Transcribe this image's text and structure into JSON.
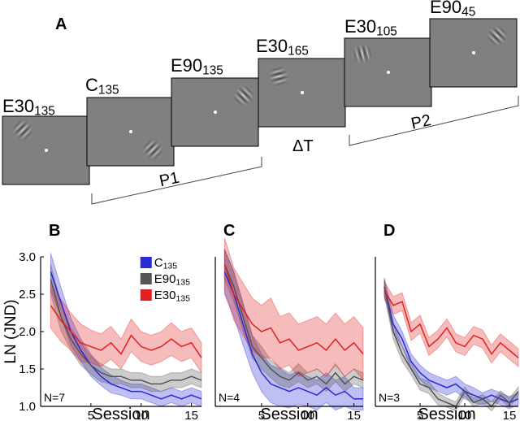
{
  "panel_a": {
    "label": "A",
    "frames": [
      {
        "name": "E30",
        "sub": "135"
      },
      {
        "name": "C",
        "sub": "135"
      },
      {
        "name": "E90",
        "sub": "135"
      },
      {
        "name": "E30",
        "sub": "165"
      },
      {
        "name": "E30",
        "sub": "105"
      },
      {
        "name": "E90",
        "sub": "45"
      }
    ],
    "p1": "P1",
    "delta": "ΔT",
    "p2": "P2"
  },
  "chart_data": [
    {
      "type": "line",
      "panel": "B",
      "ylabel": "LN (JND)",
      "xlabel": "Session",
      "n_label": "N=7",
      "legend": "upper right",
      "x": [
        1,
        2,
        3,
        4,
        5,
        6,
        7,
        8,
        9,
        10,
        11,
        12,
        13,
        14,
        15,
        16
      ],
      "xlim": [
        0,
        16
      ],
      "xticks": [
        5,
        10,
        15
      ],
      "ylim": [
        1,
        3
      ],
      "yticks": [
        {
          "value": 1,
          "label": "1.0"
        },
        {
          "value": 1.5,
          "label": "1.5"
        },
        {
          "value": 2,
          "label": "2.0"
        },
        {
          "value": 2.5,
          "label": "2.5"
        },
        {
          "value": 3,
          "label": "3.0"
        }
      ],
      "series": [
        {
          "name": "C",
          "sub": "135",
          "color": "#2a2ad6",
          "values": [
            2.8,
            2.4,
            2.0,
            1.75,
            1.55,
            1.4,
            1.3,
            1.25,
            1.2,
            1.2,
            1.15,
            1.1,
            1.15,
            1.1,
            1.15,
            1.1
          ],
          "errors": [
            0.25,
            0.2,
            0.18,
            0.15,
            0.15,
            0.12,
            0.12,
            0.1,
            0.1,
            0.1,
            0.1,
            0.1,
            0.1,
            0.1,
            0.1,
            0.1
          ]
        },
        {
          "name": "E90",
          "sub": "135",
          "color": "#555555",
          "values": [
            2.7,
            2.2,
            1.9,
            1.7,
            1.55,
            1.45,
            1.4,
            1.4,
            1.35,
            1.35,
            1.3,
            1.3,
            1.35,
            1.35,
            1.4,
            1.35
          ],
          "errors": [
            0.2,
            0.18,
            0.15,
            0.15,
            0.12,
            0.12,
            0.1,
            0.1,
            0.1,
            0.1,
            0.1,
            0.1,
            0.1,
            0.1,
            0.1,
            0.1
          ]
        },
        {
          "name": "E30",
          "sub": "135",
          "color": "#e02020",
          "values": [
            2.35,
            2.15,
            2.0,
            1.85,
            1.8,
            1.75,
            1.85,
            1.7,
            1.95,
            1.8,
            1.75,
            1.8,
            1.9,
            1.8,
            1.85,
            1.65
          ],
          "errors": [
            0.3,
            0.28,
            0.25,
            0.25,
            0.22,
            0.22,
            0.22,
            0.2,
            0.22,
            0.2,
            0.2,
            0.2,
            0.22,
            0.2,
            0.2,
            0.2
          ]
        }
      ]
    },
    {
      "type": "line",
      "panel": "C",
      "xlabel": "Session",
      "n_label": "N=4",
      "x": [
        1,
        2,
        3,
        4,
        5,
        6,
        7,
        8,
        9,
        10,
        11,
        12,
        13,
        14,
        15,
        16
      ],
      "xlim": [
        0,
        16
      ],
      "xticks": [
        5,
        10,
        15
      ],
      "ylim": [
        1,
        3
      ],
      "series": [
        {
          "color": "#2a2ad6",
          "values": [
            2.8,
            2.5,
            2.1,
            1.7,
            1.45,
            1.3,
            1.25,
            1.2,
            1.25,
            1.2,
            1.15,
            1.25,
            1.15,
            1.2,
            1.1,
            1.1
          ],
          "errors": [
            0.3,
            0.3,
            0.28,
            0.25,
            0.25,
            0.25,
            0.25,
            0.22,
            0.22,
            0.2,
            0.2,
            0.2,
            0.2,
            0.2,
            0.15,
            0.15
          ]
        },
        {
          "color": "#555555",
          "values": [
            2.9,
            2.6,
            2.2,
            1.8,
            1.65,
            1.5,
            1.4,
            1.35,
            1.45,
            1.35,
            1.4,
            1.3,
            1.45,
            1.3,
            1.4,
            1.35
          ],
          "errors": [
            0.2,
            0.2,
            0.18,
            0.15,
            0.15,
            0.12,
            0.12,
            0.1,
            0.12,
            0.1,
            0.1,
            0.1,
            0.12,
            0.1,
            0.1,
            0.1
          ]
        },
        {
          "color": "#e02020",
          "values": [
            2.9,
            2.5,
            2.3,
            2.1,
            2.0,
            2.05,
            1.85,
            1.9,
            1.75,
            1.8,
            1.85,
            1.75,
            1.9,
            1.75,
            1.85,
            1.7
          ],
          "errors": [
            0.35,
            0.35,
            0.35,
            0.35,
            0.35,
            0.4,
            0.35,
            0.35,
            0.35,
            0.35,
            0.35,
            0.35,
            0.35,
            0.35,
            0.35,
            0.35
          ]
        }
      ]
    },
    {
      "type": "line",
      "panel": "D",
      "xlabel": "Session",
      "n_label": "N=3",
      "x": [
        1,
        2,
        3,
        4,
        5,
        6,
        7,
        8,
        9,
        10,
        11,
        12,
        13,
        14,
        15,
        16
      ],
      "xlim": [
        0,
        16
      ],
      "xticks": [
        5,
        10,
        15
      ],
      "ylim": [
        1,
        3
      ],
      "series": [
        {
          "color": "#2a2ad6",
          "values": [
            2.6,
            2.1,
            1.9,
            1.6,
            1.45,
            1.35,
            1.3,
            1.25,
            1.3,
            1.2,
            1.15,
            1.1,
            1.15,
            1.1,
            1.05,
            1.1
          ],
          "errors": [
            0.12,
            0.12,
            0.1,
            0.1,
            0.1,
            0.1,
            0.1,
            0.1,
            0.1,
            0.1,
            0.1,
            0.08,
            0.08,
            0.08,
            0.08,
            0.08
          ]
        },
        {
          "color": "#555555",
          "values": [
            2.6,
            2.0,
            1.7,
            1.5,
            1.3,
            1.25,
            1.1,
            1.05,
            1.0,
            1.2,
            1.05,
            1.1,
            1.0,
            1.15,
            1.05,
            1.2
          ],
          "errors": [
            0.1,
            0.1,
            0.1,
            0.08,
            0.08,
            0.08,
            0.08,
            0.06,
            0.06,
            0.06,
            0.06,
            0.06,
            0.06,
            0.06,
            0.06,
            0.06
          ]
        },
        {
          "color": "#e02020",
          "values": [
            2.55,
            2.35,
            2.4,
            2.0,
            2.1,
            1.8,
            1.9,
            2.05,
            1.85,
            1.8,
            1.95,
            1.9,
            1.7,
            1.85,
            1.75,
            1.65
          ],
          "errors": [
            0.12,
            0.12,
            0.12,
            0.12,
            0.12,
            0.12,
            0.12,
            0.12,
            0.12,
            0.12,
            0.12,
            0.12,
            0.12,
            0.12,
            0.12,
            0.12
          ]
        }
      ]
    }
  ]
}
